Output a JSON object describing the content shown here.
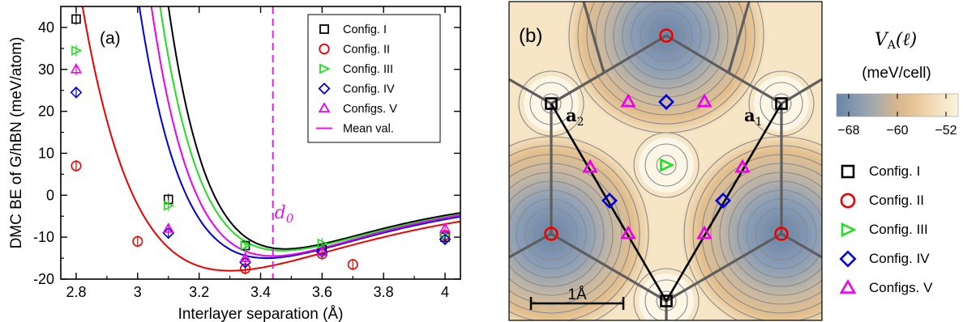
{
  "chart_data": [
    {
      "type": "scatter",
      "panel_label": "(a)",
      "xlabel": "Interlayer separation (Å)",
      "ylabel": "DMC BE of G/hBN (meV/atom)",
      "xlim": [
        2.75,
        4.05
      ],
      "ylim": [
        -20,
        45
      ],
      "xticks": [
        "2.8",
        "3",
        "3.2",
        "3.4",
        "3.6",
        "3.8",
        "4"
      ],
      "yticks": [
        "-20",
        "-10",
        "0",
        "10",
        "20",
        "30",
        "40"
      ],
      "vline": {
        "x": 3.44,
        "label": "d",
        "sub": "0",
        "color": "#e020e0"
      },
      "legend_position": "top-right",
      "series": [
        {
          "name": "Config. I",
          "marker": "square",
          "color": "#000000",
          "points": [
            [
              2.8,
              42
            ],
            [
              3.1,
              -1
            ],
            [
              3.35,
              -12
            ],
            [
              3.6,
              -13
            ],
            [
              4,
              -10
            ]
          ],
          "curve": {
            "E0": -12.8,
            "r0": 3.48,
            "a": 3.0,
            "x0": 2.75
          }
        },
        {
          "name": "Config. II",
          "marker": "circle",
          "color": "#ee0000",
          "points": [
            [
              2.8,
              7
            ],
            [
              3.0,
              -11
            ],
            [
              3.35,
              -17.5
            ],
            [
              3.6,
              -14
            ],
            [
              3.7,
              -16.5
            ],
            [
              4,
              -9.5
            ]
          ],
          "curve": {
            "E0": -18.0,
            "r0": 3.3,
            "a": 2.2,
            "x0": 2.75
          }
        },
        {
          "name": "Config. III",
          "marker": "triangle-right",
          "color": "#22dd22",
          "points": [
            [
              2.8,
              34.5
            ],
            [
              3.1,
              -2.5
            ],
            [
              3.35,
              -12
            ],
            [
              3.6,
              -11.5
            ],
            [
              4,
              -9.5
            ]
          ],
          "curve": {
            "E0": -13.2,
            "r0": 3.47,
            "a": 2.85,
            "x0": 2.75
          }
        },
        {
          "name": "Config. IV",
          "marker": "diamond",
          "color": "#0000dd",
          "points": [
            [
              2.8,
              24.5
            ],
            [
              3.1,
              -9
            ],
            [
              3.35,
              -16
            ],
            [
              3.6,
              -13.5
            ],
            [
              4,
              -10.5
            ]
          ],
          "curve": {
            "E0": -15.0,
            "r0": 3.42,
            "a": 2.65,
            "x0": 2.75
          }
        },
        {
          "name": "Configs. V",
          "marker": "triangle-up",
          "color": "#ee00ee",
          "points": [
            [
              2.8,
              30
            ],
            [
              3.1,
              -8
            ],
            [
              3.35,
              -15
            ],
            [
              3.6,
              -13.5
            ],
            [
              4,
              -8
            ]
          ],
          "curve": {
            "E0": -14.5,
            "r0": 3.44,
            "a": 2.8,
            "x0": 2.75
          }
        },
        {
          "name": "Mean val.",
          "marker": "line",
          "color": "#ee00ee"
        }
      ]
    },
    {
      "type": "heatmap",
      "panel_label": "(b)",
      "title_var": "V",
      "title_sub": "A",
      "title_arg": "(ℓ)",
      "units": "(meV/cell)",
      "colorbar_ticks": [
        "-68",
        "-60",
        "-52"
      ],
      "colorbar_range": [
        -70,
        -50
      ],
      "colorbar_colors": [
        "#6a85a8",
        "#a3aab0",
        "#d7b68c",
        "#e8c79a",
        "#f4e3c2",
        "#fbf4de"
      ],
      "lattice_labels": {
        "a1": "a",
        "a1_sub": "1",
        "a2": "a",
        "a2_sub": "2"
      },
      "scale_bar_label": "1Å",
      "legend": [
        {
          "name": "Config. I",
          "marker": "square",
          "color": "#000000"
        },
        {
          "name": "Config. II",
          "marker": "circle",
          "color": "#ee0000"
        },
        {
          "name": "Config. III",
          "marker": "triangle-right",
          "color": "#22dd22"
        },
        {
          "name": "Config. IV",
          "marker": "diamond",
          "color": "#0000dd"
        },
        {
          "name": "Configs. V",
          "marker": "triangle-up",
          "color": "#ee00ee"
        }
      ]
    }
  ]
}
